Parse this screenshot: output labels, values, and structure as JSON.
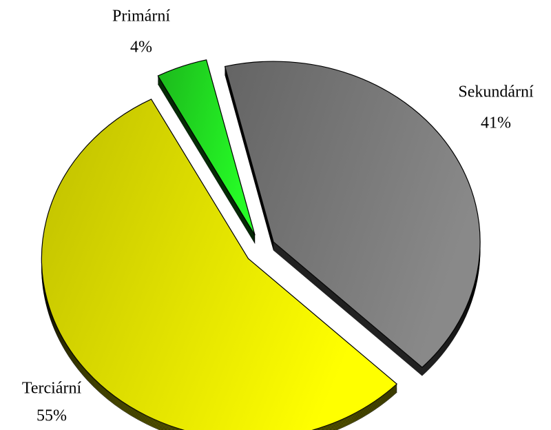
{
  "chart_data": {
    "type": "pie",
    "categories": [
      "Primární",
      "Sekundární",
      "Terciární"
    ],
    "values": [
      4,
      41,
      55
    ],
    "value_labels": [
      "4%",
      "41%",
      "55%"
    ],
    "colors": [
      "#22e022",
      "#7a7a7a",
      "#e8e800"
    ]
  }
}
